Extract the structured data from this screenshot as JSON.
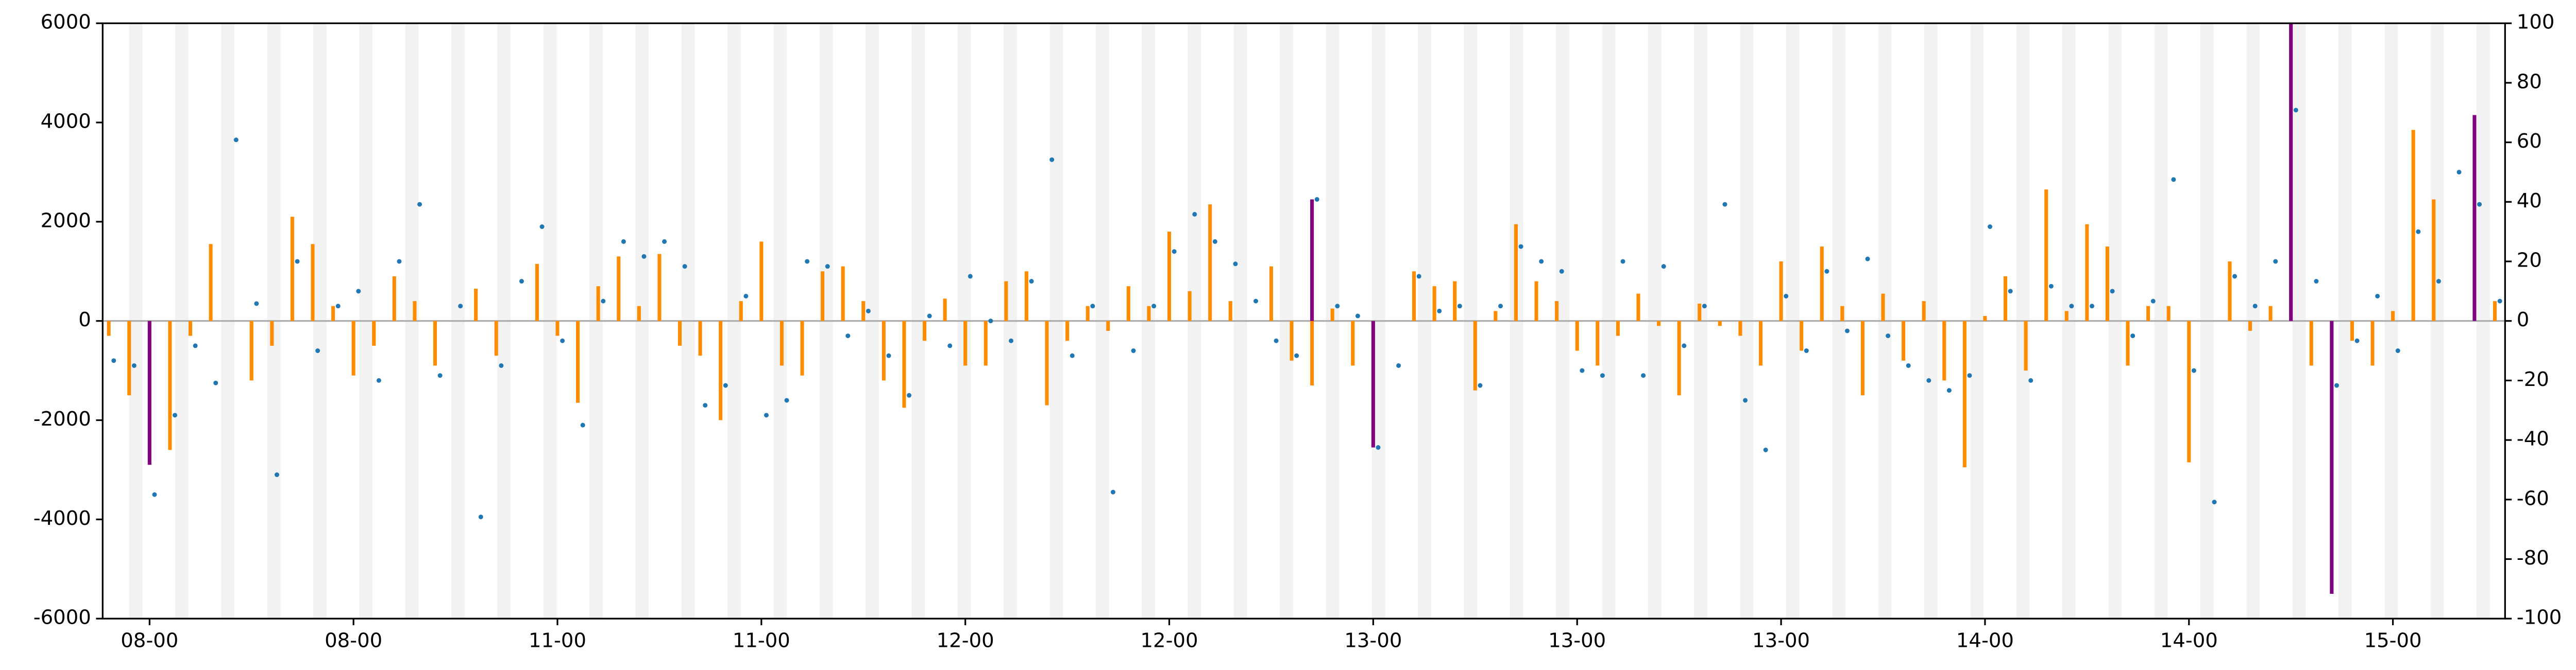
{
  "chart_data": {
    "type": "bar",
    "x": [
      -2,
      -1,
      0,
      1,
      2,
      3,
      4,
      5,
      6,
      7,
      8,
      9,
      10,
      11,
      12,
      13,
      14,
      15,
      16,
      17,
      18,
      19,
      20,
      21,
      22,
      23,
      24,
      25,
      26,
      27,
      28,
      29,
      30,
      31,
      32,
      33,
      34,
      35,
      36,
      37,
      38,
      39,
      40,
      41,
      42,
      43,
      44,
      45,
      46,
      47,
      48,
      49,
      50,
      51,
      52,
      53,
      54,
      55,
      56,
      57,
      58,
      59,
      60,
      61,
      62,
      63,
      64,
      65,
      66,
      67,
      68,
      69,
      70,
      71,
      72,
      73,
      74,
      75,
      76,
      77,
      78,
      79,
      80,
      81,
      82,
      83,
      84,
      85,
      86,
      87,
      88,
      89,
      90,
      91,
      92,
      93,
      94,
      95,
      96,
      97,
      98,
      99,
      100,
      101,
      102,
      103,
      104,
      105,
      106,
      107,
      108,
      109,
      110,
      111,
      112,
      113,
      114,
      115
    ],
    "xlim": [
      -2.3,
      115.5
    ],
    "xticks": [
      {
        "value": 0,
        "label": "08-00"
      },
      {
        "value": 10,
        "label": "08-00"
      },
      {
        "value": 20,
        "label": "11-00"
      },
      {
        "value": 30,
        "label": "11-00"
      },
      {
        "value": 40,
        "label": "12-00"
      },
      {
        "value": 50,
        "label": "12-00"
      },
      {
        "value": 60,
        "label": "13-00"
      },
      {
        "value": 70,
        "label": "13-00"
      },
      {
        "value": 80,
        "label": "13-00"
      },
      {
        "value": 90,
        "label": "14-00"
      },
      {
        "value": 100,
        "label": "14-00"
      },
      {
        "value": 110,
        "label": "15-00"
      }
    ],
    "ylim": [
      -6000,
      6000
    ],
    "yticks": [
      -6000,
      -4000,
      -2000,
      0,
      2000,
      4000,
      6000
    ],
    "y2lim": [
      -100,
      100
    ],
    "y2ticks": [
      -100,
      -80,
      -60,
      -40,
      -20,
      0,
      20,
      40,
      60,
      80,
      100
    ],
    "series": [
      {
        "type": "bar",
        "color": "#ff8c00",
        "values": [
          -300,
          -1500,
          null,
          -2600,
          -300,
          1550,
          null,
          -1200,
          -500,
          2100,
          1550,
          300,
          -1100,
          -500,
          900,
          400,
          -900,
          null,
          650,
          -700,
          null,
          1150,
          -300,
          -1650,
          700,
          1300,
          300,
          1350,
          -500,
          -700,
          -2000,
          400,
          1600,
          -900,
          -1100,
          1000,
          1100,
          400,
          -1200,
          -1750,
          -400,
          450,
          -900,
          -900,
          800,
          1000,
          -1700,
          -400,
          300,
          -200,
          700,
          300,
          1800,
          600,
          2350,
          400,
          null,
          1100,
          -800,
          -1300,
          250,
          -900,
          null,
          null,
          1000,
          700,
          800,
          -1400,
          200,
          1950,
          800,
          400,
          -600,
          -900,
          -300,
          550,
          -100,
          -1500,
          350,
          -100,
          -300,
          -900,
          1200,
          -600,
          1500,
          300,
          -1500,
          550,
          -800,
          400,
          -1200,
          -2950,
          100,
          900,
          -1000,
          2650,
          200,
          1950,
          1500,
          -900,
          300,
          300,
          -2850,
          null,
          1200,
          -200,
          300,
          null,
          -900,
          null,
          -400,
          -900,
          200,
          3850,
          2450,
          null,
          null,
          400
        ]
      },
      {
        "type": "bar",
        "color": "#800080",
        "x": [
          0,
          57,
          60,
          105,
          107,
          114
        ],
        "values": [
          -2900,
          2450,
          -2550,
          6000,
          -5500,
          4150
        ]
      },
      {
        "type": "scatter",
        "color": "#1f77b4",
        "values": [
          -800,
          -900,
          -3500,
          -1900,
          -500,
          -1250,
          3650,
          350,
          -3100,
          1200,
          -600,
          300,
          600,
          -1200,
          1200,
          2350,
          -1100,
          300,
          -3950,
          -900,
          800,
          1900,
          -400,
          -2100,
          400,
          1600,
          1300,
          1600,
          1100,
          -1700,
          -1300,
          500,
          -1900,
          -1600,
          1200,
          1100,
          -300,
          200,
          -700,
          -1500,
          100,
          -500,
          900,
          0,
          -400,
          800,
          3250,
          -700,
          300,
          -3450,
          -600,
          300,
          1400,
          2150,
          1600,
          1150,
          400,
          -400,
          -700,
          2450,
          300,
          100,
          -2550,
          -900,
          900,
          200,
          300,
          -1300,
          300,
          1500,
          1200,
          1000,
          -1000,
          -1100,
          1200,
          -1100,
          1100,
          -500,
          300,
          2350,
          -1600,
          -2600,
          500,
          -600,
          1000,
          -200,
          1250,
          -300,
          -900,
          -1200,
          -1400,
          -1100,
          1900,
          600,
          -1200,
          700,
          300,
          300,
          600,
          -300,
          400,
          2850,
          -1000,
          -3650,
          900,
          300,
          1200,
          4250,
          800,
          -1300,
          -400,
          500,
          -600,
          1800,
          800,
          3000,
          2350,
          400
        ]
      }
    ]
  }
}
